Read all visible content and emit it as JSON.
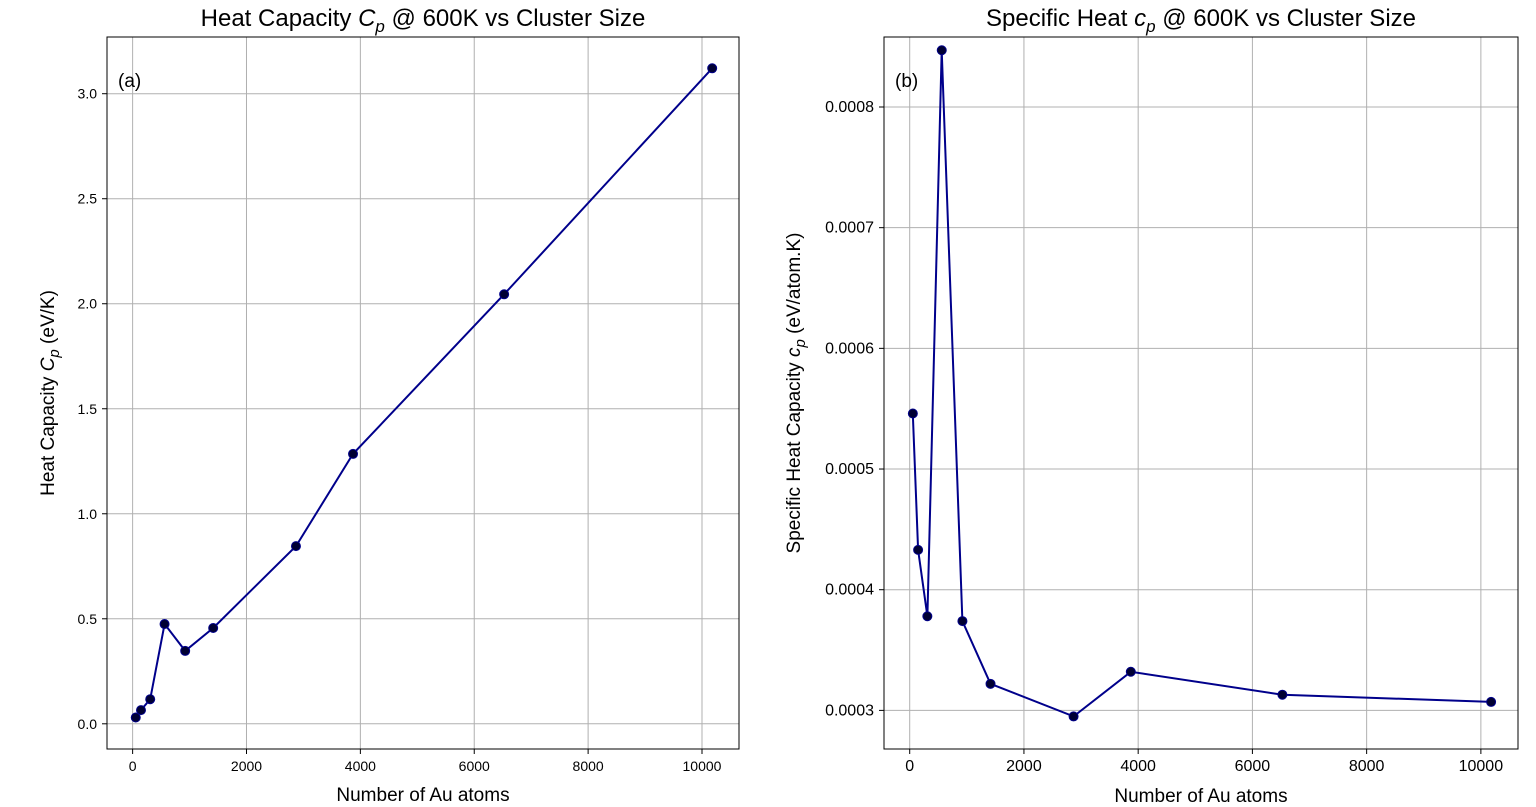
{
  "chart_data": [
    {
      "type": "line",
      "title_main": "Heat Capacity ",
      "title_sym": "C",
      "title_sub": "p",
      "title_rest": " @ 600K vs Cluster Size",
      "panel_label": "(a)",
      "xlabel": "Number of Au atoms",
      "ylabel_main": "Heat Capacity ",
      "ylabel_sym": "C",
      "ylabel_sub": "p",
      "ylabel_rest": " (eV/K)",
      "xlim": [
        -450,
        10650
      ],
      "ylim": [
        -0.12,
        3.27
      ],
      "xticks": [
        0,
        2000,
        4000,
        6000,
        8000,
        10000
      ],
      "xtick_labels": [
        "0",
        "2000",
        "4000",
        "6000",
        "8000",
        "10000"
      ],
      "yticks": [
        0.0,
        0.5,
        1.0,
        1.5,
        2.0,
        2.5,
        3.0
      ],
      "ytick_labels": [
        "0.0",
        "0.5",
        "1.0",
        "1.5",
        "2.0",
        "2.5",
        "3.0"
      ],
      "grid": true,
      "line_color": "#00008b",
      "marker_color": "#000033",
      "x": [
        55,
        147,
        309,
        561,
        923,
        1415,
        2869,
        3871,
        6525,
        10179
      ],
      "y": [
        0.03,
        0.065,
        0.117,
        0.475,
        0.347,
        0.456,
        0.846,
        1.285,
        2.045,
        3.121
      ]
    },
    {
      "type": "line",
      "title_main": "Specific Heat ",
      "title_sym": "c",
      "title_sub": "p",
      "title_rest": " @ 600K vs Cluster Size",
      "panel_label": "(b)",
      "xlabel": "Number of Au atoms",
      "ylabel_main": "Specific Heat Capacity ",
      "ylabel_sym": "c",
      "ylabel_sub": "p",
      "ylabel_rest": " (eV/atom.K)",
      "xlim": [
        -450,
        10650
      ],
      "ylim": [
        0.000268,
        0.000858
      ],
      "xticks": [
        0,
        2000,
        4000,
        6000,
        8000,
        10000
      ],
      "xtick_labels": [
        "0",
        "2000",
        "4000",
        "6000",
        "8000",
        "10000"
      ],
      "yticks": [
        0.0003,
        0.0004,
        0.0005,
        0.0006,
        0.0007,
        0.0008
      ],
      "ytick_labels": [
        "0.0003",
        "0.0004",
        "0.0005",
        "0.0006",
        "0.0007",
        "0.0008"
      ],
      "grid": true,
      "line_color": "#00008b",
      "marker_color": "#000033",
      "x": [
        55,
        147,
        309,
        561,
        923,
        1415,
        2869,
        3871,
        6525,
        10179
      ],
      "y": [
        0.000546,
        0.000433,
        0.000378,
        0.000847,
        0.000374,
        0.000322,
        0.000295,
        0.000332,
        0.000313,
        0.000307
      ]
    }
  ]
}
